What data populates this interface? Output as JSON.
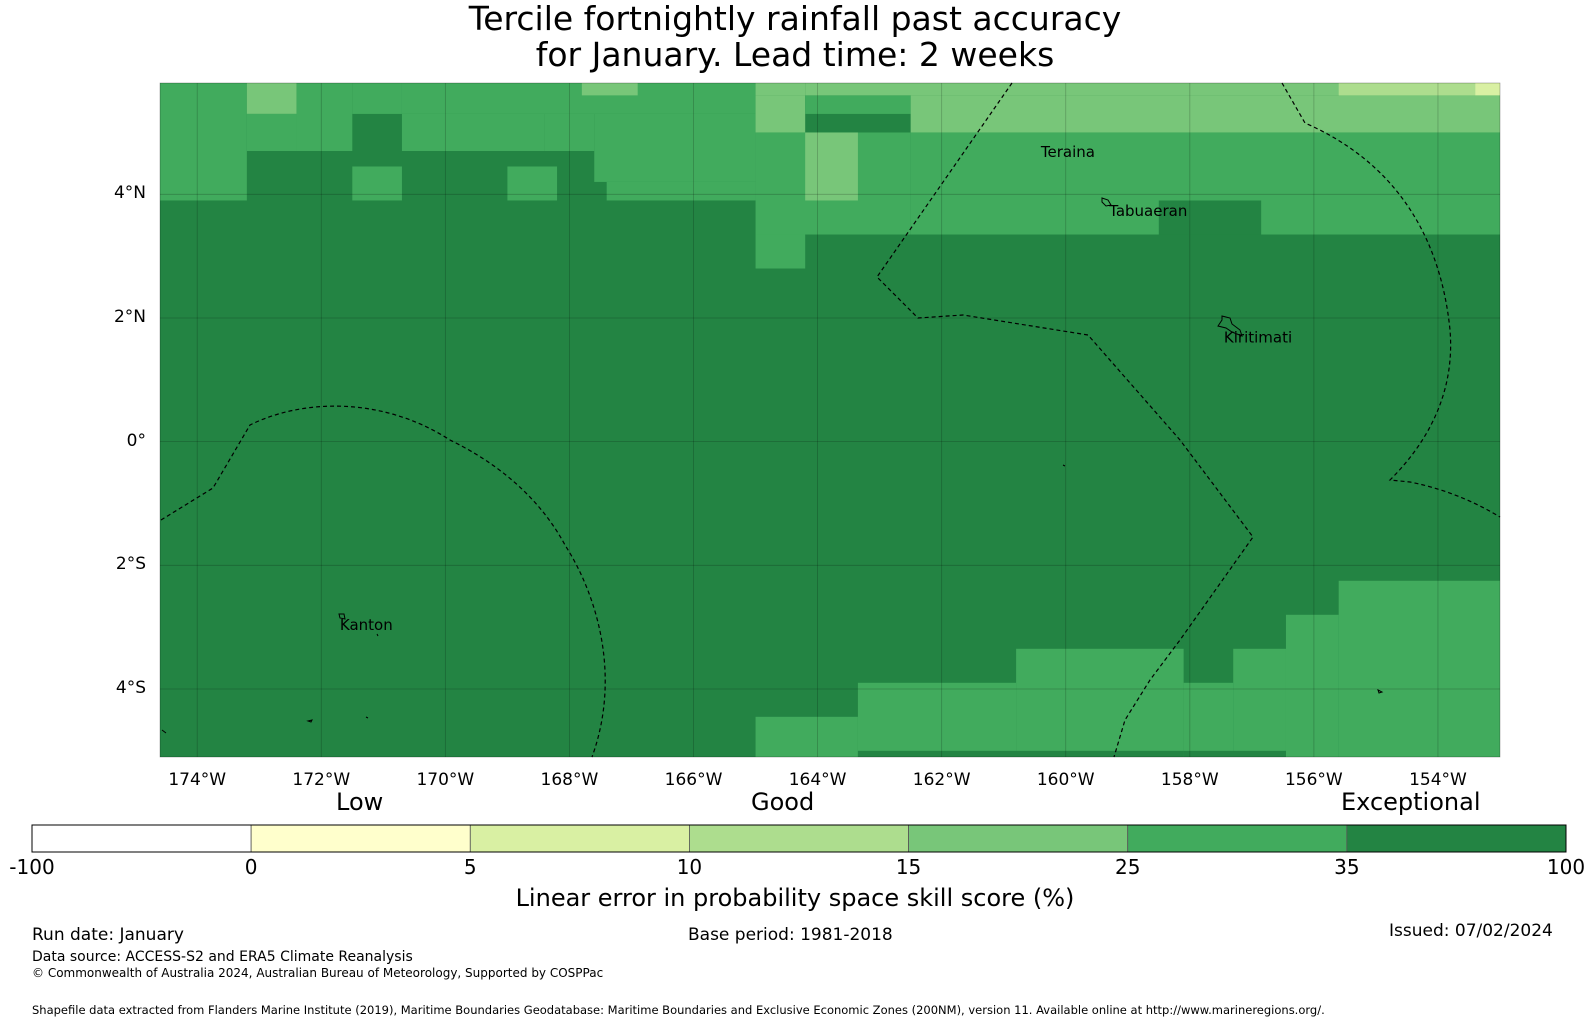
{
  "title": {
    "line1": "Tercile fortnightly rainfall past accuracy",
    "line2": "for January. Lead time: 2 weeks"
  },
  "map": {
    "lat_range": [
      -5.1,
      5.8
    ],
    "lon_range": [
      -174.6,
      -153.0
    ],
    "grid_lons": [
      -174,
      -172,
      -170,
      -168,
      -166,
      -164,
      -162,
      -160,
      -158,
      -156,
      -154
    ],
    "grid_lats": [
      4,
      2,
      0,
      -2,
      -4
    ],
    "y_tick_labels": [
      "4°N",
      "2°N",
      "0°",
      "2°S",
      "4°S"
    ],
    "x_tick_labels": [
      "174°W",
      "172°W",
      "170°W",
      "168°W",
      "166°W",
      "164°W",
      "162°W",
      "160°W",
      "158°W",
      "156°W",
      "154°W"
    ],
    "places": [
      {
        "name": "Teraina",
        "lon": -160.4,
        "lat": 4.6
      },
      {
        "name": "Tabuaeran",
        "lon": -159.3,
        "lat": 3.65
      },
      {
        "name": "Kiritimati",
        "lon": -157.45,
        "lat": 1.6
      },
      {
        "name": "Kanton",
        "lon": -171.7,
        "lat": -3.05
      }
    ],
    "base_category": "35-100",
    "cells": [
      {
        "lon0": -174.6,
        "lon1": -173.2,
        "lat0": 3.9,
        "lat1": 5.8,
        "cat": "25-35"
      },
      {
        "lon0": -173.2,
        "lon1": -172.4,
        "lat0": 5.3,
        "lat1": 5.8,
        "cat": "15-25"
      },
      {
        "lon0": -173.2,
        "lon1": -172.4,
        "lat0": 4.7,
        "lat1": 5.3,
        "cat": "25-35"
      },
      {
        "lon0": -172.4,
        "lon1": -171.5,
        "lat0": 4.7,
        "lat1": 5.8,
        "cat": "25-35"
      },
      {
        "lon0": -171.5,
        "lon1": -170.7,
        "lat0": 5.3,
        "lat1": 5.8,
        "cat": "25-35"
      },
      {
        "lon0": -170.7,
        "lon1": -165.0,
        "lat0": 5.3,
        "lat1": 5.8,
        "cat": "25-35"
      },
      {
        "lon0": -170.7,
        "lon1": -168.4,
        "lat0": 4.7,
        "lat1": 5.3,
        "cat": "25-35"
      },
      {
        "lon0": -167.6,
        "lon1": -165.0,
        "lat0": 4.2,
        "lat1": 5.3,
        "cat": "25-35"
      },
      {
        "lon0": -168.4,
        "lon1": -167.6,
        "lat0": 4.7,
        "lat1": 5.3,
        "cat": "25-35"
      },
      {
        "lon0": -171.5,
        "lon1": -170.7,
        "lat0": 3.9,
        "lat1": 4.45,
        "cat": "25-35"
      },
      {
        "lon0": -169.0,
        "lon1": -168.2,
        "lat0": 3.9,
        "lat1": 4.45,
        "cat": "25-35"
      },
      {
        "lon0": -167.4,
        "lon1": -165.0,
        "lat0": 3.9,
        "lat1": 4.2,
        "cat": "25-35"
      },
      {
        "lon0": -167.8,
        "lon1": -166.9,
        "lat0": 5.6,
        "lat1": 5.8,
        "cat": "15-25"
      },
      {
        "lon0": -165.0,
        "lon1": -164.2,
        "lat0": 5.6,
        "lat1": 5.8,
        "cat": "15-25"
      },
      {
        "lon0": -165.0,
        "lon1": -164.2,
        "lat0": 5.0,
        "lat1": 5.6,
        "cat": "15-25"
      },
      {
        "lon0": -164.2,
        "lon1": -162.5,
        "lat0": 5.3,
        "lat1": 5.6,
        "cat": "25-35"
      },
      {
        "lon0": -164.2,
        "lon1": -153.0,
        "lat0": 5.6,
        "lat1": 5.8,
        "cat": "15-25"
      },
      {
        "lon0": -165.0,
        "lon1": -162.5,
        "lat0": 3.35,
        "lat1": 5.0,
        "cat": "25-35"
      },
      {
        "lon0": -164.2,
        "lon1": -163.35,
        "lat0": 3.9,
        "lat1": 5.0,
        "cat": "15-25"
      },
      {
        "lon0": -162.5,
        "lon1": -153.0,
        "lat0": 5.0,
        "lat1": 5.6,
        "cat": "15-25"
      },
      {
        "lon0": -155.6,
        "lon1": -153.4,
        "lat0": 5.6,
        "lat1": 5.8,
        "cat": "10-15"
      },
      {
        "lon0": -153.4,
        "lon1": -153.0,
        "lat0": 5.6,
        "lat1": 5.8,
        "cat": "5-10"
      },
      {
        "lon0": -162.5,
        "lon1": -153.0,
        "lat0": 3.35,
        "lat1": 5.0,
        "cat": "25-35"
      },
      {
        "lon0": -158.5,
        "lon1": -156.85,
        "lat0": 3.35,
        "lat1": 3.9,
        "cat": "35-100"
      },
      {
        "lon0": -165.0,
        "lon1": -164.2,
        "lat0": 2.8,
        "lat1": 3.35,
        "cat": "25-35"
      },
      {
        "lon0": -155.6,
        "lon1": -153.0,
        "lat0": -5.1,
        "lat1": -2.25,
        "cat": "25-35"
      },
      {
        "lon0": -156.45,
        "lon1": -155.6,
        "lat0": -5.1,
        "lat1": -2.8,
        "cat": "25-35"
      },
      {
        "lon0": -157.3,
        "lon1": -156.45,
        "lat0": -5.1,
        "lat1": -3.35,
        "cat": "25-35"
      },
      {
        "lon0": -158.1,
        "lon1": -157.3,
        "lat0": -5.1,
        "lat1": -3.9,
        "cat": "25-35"
      },
      {
        "lon0": -160.8,
        "lon1": -158.1,
        "lat0": -5.1,
        "lat1": -3.35,
        "cat": "25-35"
      },
      {
        "lon0": -163.35,
        "lon1": -160.8,
        "lat0": -5.1,
        "lat1": -3.9,
        "cat": "25-35"
      },
      {
        "lon0": -165.0,
        "lon1": -163.35,
        "lat0": -5.1,
        "lat1": -4.45,
        "cat": "25-35"
      },
      {
        "lon0": -163.35,
        "lon1": -158.1,
        "lat0": -5.1,
        "lat1": -5.0,
        "cat": "35-100"
      },
      {
        "lon0": -158.1,
        "lon1": -156.45,
        "lat0": -5.1,
        "lat1": -5.0,
        "cat": "35-100"
      }
    ],
    "categories": {
      "5-10": "#d9f0a3",
      "10-15": "#addd8e",
      "15-25": "#78c679",
      "25-35": "#41ab5d",
      "35-100": "#238443"
    }
  },
  "colorbar": {
    "qualitative": {
      "low": "Low",
      "good": "Good",
      "exceptional": "Exceptional"
    },
    "segments": [
      {
        "color": "#ffffff"
      },
      {
        "color": "#ffffcc"
      },
      {
        "color": "#d9f0a3"
      },
      {
        "color": "#addd8e"
      },
      {
        "color": "#78c679"
      },
      {
        "color": "#41ab5d"
      },
      {
        "color": "#238443"
      }
    ],
    "ticks": [
      "-100",
      "0",
      "5",
      "10",
      "15",
      "25",
      "35",
      "100"
    ],
    "label": "Linear error in probability space skill score (%)"
  },
  "footer": {
    "run_date": "Run date: January",
    "base_period": "Base period: 1981-2018",
    "issued": "Issued: 07/02/2024",
    "data_source": "Data source: ACCESS-S2 and ERA5 Climate Reanalysis",
    "copyright": "© Commonwealth of Australia 2024, Australian Bureau of Meteorology, Supported by COSPPac",
    "shapefile": "Shapefile data extracted from Flanders Marine Institute (2019), Maritime Boundaries Geodatabase: Maritime Boundaries and Exclusive Economic Zones (200NM), version 11. Available online at http://www.marineregions.org/."
  }
}
